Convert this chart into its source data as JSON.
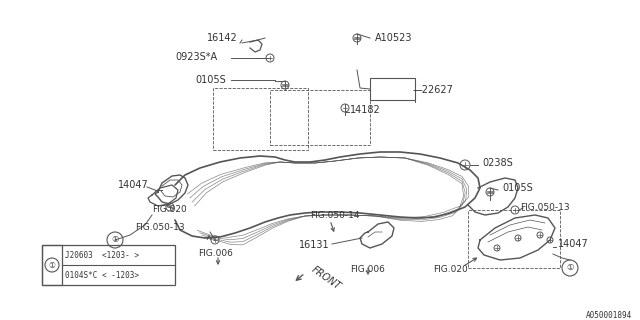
{
  "bg_color": "#ffffff",
  "line_color": "#555555",
  "text_color": "#333333",
  "ref_num": "A050001894",
  "legend_rows": [
    "0104S*C < -1203>",
    "J20603  <1203- >"
  ],
  "fig_w": 6.4,
  "fig_h": 3.2,
  "dpi": 100
}
